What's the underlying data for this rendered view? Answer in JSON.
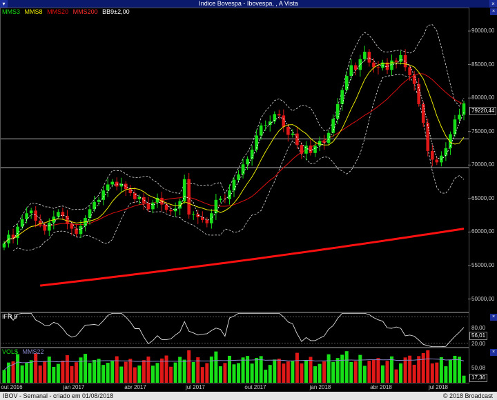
{
  "window": {
    "title": "Indice Bovespa - Ibovespa, , A Vista"
  },
  "footer": {
    "left": "IBOV - Semanal - criado em 01/08/2018",
    "right": "© 2018 Broadcast"
  },
  "colors": {
    "up": "#18e018",
    "down": "#e01818",
    "mms3": "#ffffff",
    "mms8": "#e8e800",
    "mms20": "#e01010",
    "mms200": "#ff1010",
    "bb": "#dddddd",
    "ifr": "#e0e0e0",
    "vol_ma": "#8888cc"
  },
  "price_panel": {
    "legend": [
      "MMS3",
      "MMS8",
      "MMS20",
      "MMS200",
      "BB9±2,00"
    ],
    "last_price": "79220,44",
    "y_ticks": [
      "90000,00",
      "85000,00",
      "80000,00",
      "75000,00",
      "70000,00",
      "65000,00",
      "60000,00",
      "55000,00",
      "50000,00"
    ],
    "ylim": [
      48000,
      93500
    ],
    "h_lines": [
      73900,
      69600
    ]
  },
  "ifr_panel": {
    "legend": "IFR 9",
    "last": "56,01",
    "y_ticks": [
      "80,00",
      "20,00"
    ],
    "ylim": [
      10,
      90
    ]
  },
  "vol_panel": {
    "legend": [
      "VOL$",
      "MMS22"
    ],
    "last": "17,36",
    "y_ticks": [
      "50,08"
    ],
    "ylim": [
      0,
      80
    ]
  },
  "x_axis": {
    "labels": [
      "out 2016",
      "jan 2017",
      "abr 2017",
      "jul 2017",
      "out 2017",
      "jan 2018",
      "abr 2018",
      "jul 2018"
    ]
  },
  "chart_data": {
    "type": "candlestick",
    "title": "Indice Bovespa - Ibovespa, , A Vista",
    "x_labels": [
      "out 2016",
      "jan 2017",
      "abr 2017",
      "jul 2017",
      "out 2017",
      "jan 2018",
      "abr 2018",
      "jul 2018"
    ],
    "close_weekly": [
      58300,
      59600,
      59100,
      60800,
      61900,
      62800,
      63200,
      61700,
      61100,
      60200,
      61400,
      62300,
      63000,
      62400,
      61200,
      60500,
      59700,
      60900,
      62100,
      63400,
      64500,
      64800,
      66200,
      67100,
      67500,
      66800,
      67200,
      66400,
      65800,
      64900,
      65200,
      64300,
      63400,
      64400,
      65100,
      64100,
      63300,
      63100,
      63500,
      64600,
      67900,
      62600,
      62700,
      62200,
      61800,
      61300,
      62800,
      64800,
      65000,
      64900,
      66200,
      67800,
      68600,
      70100,
      70900,
      72300,
      74400,
      75900,
      76000,
      76500,
      77600,
      77400,
      75700,
      74500,
      74700,
      73000,
      71700,
      72900,
      71800,
      72900,
      73600,
      73300,
      74800,
      76900,
      79100,
      81200,
      83300,
      84900,
      84200,
      85800,
      86900,
      85300,
      84600,
      84500,
      85300,
      84200,
      85600,
      85400,
      86400,
      84600,
      83400,
      82100,
      79100,
      76300,
      72100,
      70800,
      70400,
      71400,
      72500,
      74600,
      76800,
      77500,
      79200
    ],
    "mms200": {
      "start": 52000,
      "end": 60500
    },
    "ifr9_last": 56.01,
    "volume_ma22_last": 50.08,
    "volume_last": 17.36
  }
}
